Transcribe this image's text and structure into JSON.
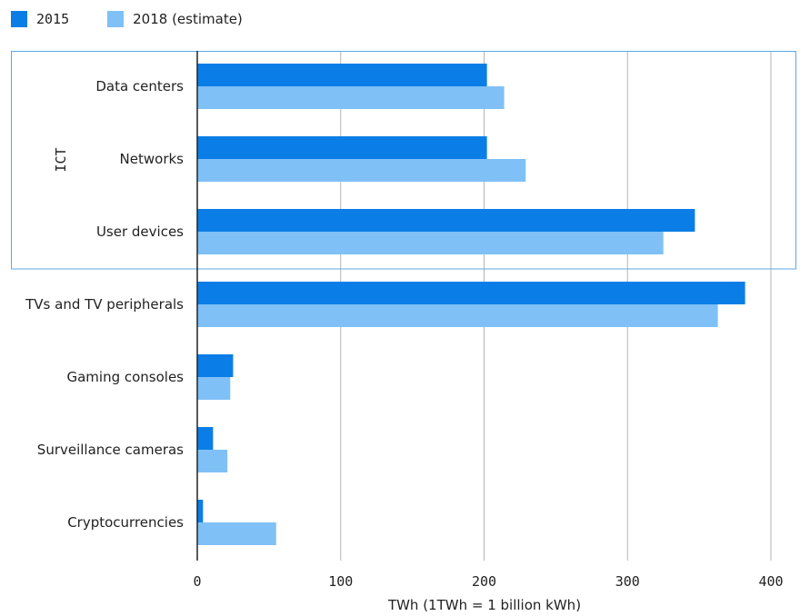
{
  "legend": {
    "items": [
      {
        "label": "2015",
        "color": "#0a7ee6"
      },
      {
        "label": "2018 (estimate)",
        "color": "#7fc0f7"
      }
    ]
  },
  "chart_data": {
    "type": "bar",
    "orientation": "horizontal",
    "categories": [
      "Data centers",
      "Networks",
      "User devices",
      "TVs and TV peripherals",
      "Gaming consoles",
      "Surveillance cameras",
      "Cryptocurrencies"
    ],
    "series": [
      {
        "name": "2015",
        "color": "#0a7ee6",
        "values": [
          202,
          202,
          347,
          382,
          25,
          11,
          4
        ]
      },
      {
        "name": "2018 (estimate)",
        "color": "#7fc0f7",
        "values": [
          214,
          229,
          325,
          363,
          23,
          21,
          55
        ]
      }
    ],
    "xlabel": "TWh (1TWh = 1 billion kWh)",
    "xlim": [
      0,
      420
    ],
    "xticks": [
      "0",
      "100",
      "200",
      "300",
      "400"
    ],
    "grid": true,
    "legend_position": "top-left",
    "groups": [
      {
        "label": "ICT",
        "categories": [
          "Data centers",
          "Networks",
          "User devices"
        ],
        "border_color": "#5aa8e8"
      }
    ]
  }
}
